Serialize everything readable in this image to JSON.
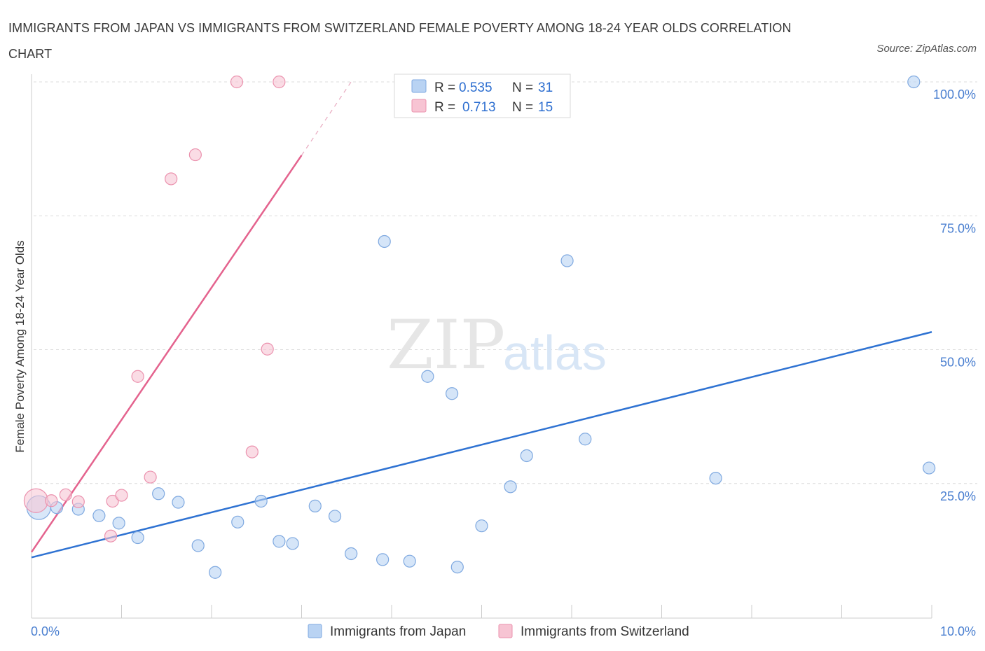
{
  "title": "IMMIGRANTS FROM JAPAN VS IMMIGRANTS FROM SWITZERLAND FEMALE POVERTY AMONG 18-24 YEAR OLDS CORRELATION CHART",
  "source": "Source: ZipAtlas.com",
  "watermark": {
    "zip": "ZIP",
    "atlas": "atlas"
  },
  "colors": {
    "japan_fill": "#b9d3f3",
    "japan_stroke": "#7fa9e0",
    "japan_line": "#2e72d2",
    "swiss_fill": "#f7c4d3",
    "swiss_stroke": "#eb92ae",
    "swiss_line": "#e4638e",
    "grid": "#dcdcdc",
    "axis_label": "#4a7fd0"
  },
  "stats": [
    {
      "r_label": "R =",
      "r": "0.535",
      "n_label": "N =",
      "n": "31"
    },
    {
      "r_label": "R =",
      "r": "0.713",
      "n_label": "N =",
      "n": "15"
    }
  ],
  "chart_data": {
    "type": "scatter",
    "ylabel": "Female Poverty Among 18-24 Year Olds",
    "xlim": [
      0,
      10
    ],
    "ylim": [
      0,
      100
    ],
    "x_tick_labels": [
      "0.0%",
      "10.0%"
    ],
    "y_ticks": [
      25,
      50,
      75,
      100
    ],
    "y_tick_labels": [
      "25.0%",
      "50.0%",
      "75.0%",
      "100.0%"
    ],
    "grid": true,
    "legend_position": "bottom-center",
    "series": [
      {
        "name": "Immigrants from Japan",
        "trendline": {
          "x": [
            0,
            10
          ],
          "y": [
            11.2,
            53.3
          ]
        },
        "points": [
          {
            "x": 0.08,
            "y": 20.5,
            "big": true
          },
          {
            "x": 0.28,
            "y": 20.5
          },
          {
            "x": 0.52,
            "y": 20.2
          },
          {
            "x": 0.75,
            "y": 19.0
          },
          {
            "x": 0.97,
            "y": 17.6
          },
          {
            "x": 1.18,
            "y": 14.9
          },
          {
            "x": 1.41,
            "y": 23.1
          },
          {
            "x": 1.63,
            "y": 21.5
          },
          {
            "x": 1.85,
            "y": 13.4
          },
          {
            "x": 2.04,
            "y": 8.4
          },
          {
            "x": 2.29,
            "y": 17.8
          },
          {
            "x": 2.55,
            "y": 21.7
          },
          {
            "x": 2.75,
            "y": 14.2
          },
          {
            "x": 2.9,
            "y": 13.8
          },
          {
            "x": 3.15,
            "y": 20.8
          },
          {
            "x": 3.37,
            "y": 18.9
          },
          {
            "x": 3.55,
            "y": 11.9
          },
          {
            "x": 3.9,
            "y": 10.8
          },
          {
            "x": 3.92,
            "y": 70.2
          },
          {
            "x": 4.2,
            "y": 10.5
          },
          {
            "x": 4.4,
            "y": 45.0
          },
          {
            "x": 4.67,
            "y": 41.8
          },
          {
            "x": 4.73,
            "y": 9.4
          },
          {
            "x": 5.0,
            "y": 17.1
          },
          {
            "x": 5.32,
            "y": 24.4
          },
          {
            "x": 5.5,
            "y": 30.2
          },
          {
            "x": 5.95,
            "y": 66.6
          },
          {
            "x": 6.15,
            "y": 33.3
          },
          {
            "x": 7.6,
            "y": 26.0
          },
          {
            "x": 9.8,
            "y": 100.0
          },
          {
            "x": 9.97,
            "y": 27.9
          }
        ]
      },
      {
        "name": "Immigrants from Switzerland",
        "trendline": {
          "x": [
            0,
            3.0
          ],
          "y": [
            12.2,
            86.3
          ],
          "dashed_to": {
            "x": 3.55,
            "y": 100.0
          }
        },
        "points": [
          {
            "x": 0.05,
            "y": 21.8,
            "big": true
          },
          {
            "x": 0.22,
            "y": 21.8
          },
          {
            "x": 0.38,
            "y": 22.9
          },
          {
            "x": 0.52,
            "y": 21.6
          },
          {
            "x": 0.88,
            "y": 15.2
          },
          {
            "x": 0.9,
            "y": 21.7
          },
          {
            "x": 1.0,
            "y": 22.8
          },
          {
            "x": 1.18,
            "y": 45.0
          },
          {
            "x": 1.32,
            "y": 26.2
          },
          {
            "x": 1.55,
            "y": 81.9
          },
          {
            "x": 1.82,
            "y": 86.4
          },
          {
            "x": 2.28,
            "y": 100.0
          },
          {
            "x": 2.45,
            "y": 30.9
          },
          {
            "x": 2.62,
            "y": 50.1
          },
          {
            "x": 2.75,
            "y": 100.0
          }
        ]
      }
    ]
  }
}
